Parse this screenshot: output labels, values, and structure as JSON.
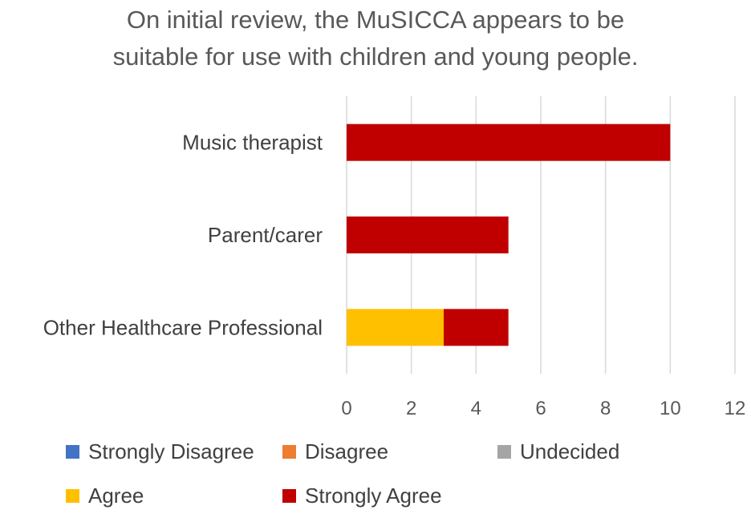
{
  "chart_data": {
    "type": "bar",
    "orientation": "horizontal",
    "stacked": true,
    "title_lines": [
      "On initial review, the MuSICCA appears to be",
      "suitable for use with children and young people."
    ],
    "categories": [
      "Music therapist",
      "Parent/carer",
      "Other Healthcare Professional"
    ],
    "series": [
      {
        "name": "Strongly Disagree",
        "color": "#4472C4",
        "values": [
          0,
          0,
          0
        ]
      },
      {
        "name": "Disagree",
        "color": "#ED7D31",
        "values": [
          0,
          0,
          0
        ]
      },
      {
        "name": "Undecided",
        "color": "#A5A5A5",
        "values": [
          0,
          0,
          0
        ]
      },
      {
        "name": "Agree",
        "color": "#FFC000",
        "values": [
          0,
          0,
          3
        ]
      },
      {
        "name": "Strongly Agree",
        "color": "#C00000",
        "values": [
          10,
          5,
          2
        ]
      }
    ],
    "xlim": [
      0,
      12
    ],
    "xticks": [
      "0",
      "2",
      "4",
      "6",
      "8",
      "10",
      "12"
    ],
    "grid": "vertical",
    "legend_position": "bottom"
  }
}
